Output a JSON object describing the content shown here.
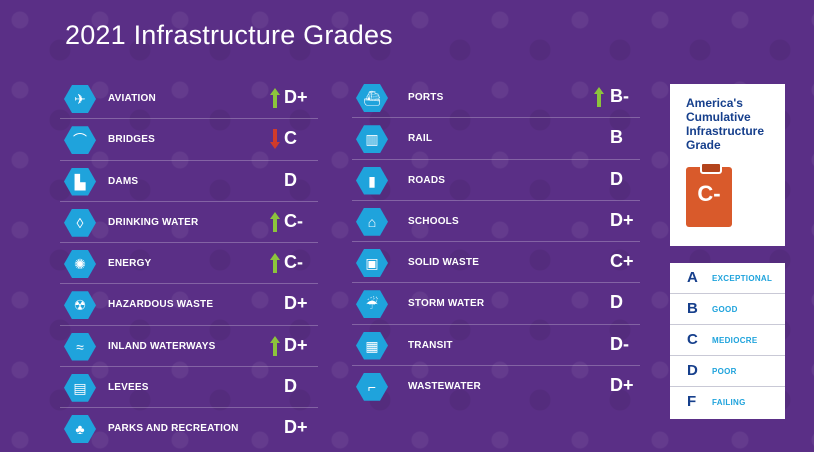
{
  "title": "2021 Infrastructure Grades",
  "categories_left": [
    {
      "name": "AVIATION",
      "grade": "D+",
      "trend": "up",
      "icon": "airplane-icon",
      "glyph": "✈"
    },
    {
      "name": "BRIDGES",
      "grade": "C",
      "trend": "down",
      "icon": "bridge-icon",
      "glyph": "⌒"
    },
    {
      "name": "DAMS",
      "grade": "D",
      "trend": "none",
      "icon": "dam-icon",
      "glyph": "▙"
    },
    {
      "name": "DRINKING WATER",
      "grade": "C-",
      "trend": "up",
      "icon": "water-glass-icon",
      "glyph": "◊"
    },
    {
      "name": "ENERGY",
      "grade": "C-",
      "trend": "up",
      "icon": "lightbulb-icon",
      "glyph": "✺"
    },
    {
      "name": "HAZARDOUS WASTE",
      "grade": "D+",
      "trend": "none",
      "icon": "hazard-barrel-icon",
      "glyph": "☢"
    },
    {
      "name": "INLAND WATERWAYS",
      "grade": "D+",
      "trend": "up",
      "icon": "waterway-icon",
      "glyph": "≈"
    },
    {
      "name": "LEVEES",
      "grade": "D",
      "trend": "none",
      "icon": "levee-icon",
      "glyph": "▤"
    },
    {
      "name": "PARKS AND RECREATION",
      "grade": "D+",
      "trend": "none",
      "icon": "tree-icon",
      "glyph": "♣"
    }
  ],
  "categories_right": [
    {
      "name": "PORTS",
      "grade": "B-",
      "trend": "up",
      "icon": "ship-icon",
      "glyph": "⛴"
    },
    {
      "name": "RAIL",
      "grade": "B",
      "trend": "none",
      "icon": "rail-icon",
      "glyph": "▥"
    },
    {
      "name": "ROADS",
      "grade": "D",
      "trend": "none",
      "icon": "road-icon",
      "glyph": "▮"
    },
    {
      "name": "SCHOOLS",
      "grade": "D+",
      "trend": "none",
      "icon": "school-icon",
      "glyph": "⌂"
    },
    {
      "name": "SOLID WASTE",
      "grade": "C+",
      "trend": "none",
      "icon": "trash-can-icon",
      "glyph": "▣"
    },
    {
      "name": "STORM WATER",
      "grade": "D",
      "trend": "none",
      "icon": "storm-drain-icon",
      "glyph": "☔"
    },
    {
      "name": "TRANSIT",
      "grade": "D-",
      "trend": "none",
      "icon": "bus-icon",
      "glyph": "▦"
    },
    {
      "name": "WASTEWATER",
      "grade": "D+",
      "trend": "none",
      "icon": "toilet-icon",
      "glyph": "⌐"
    }
  ],
  "cumulative": {
    "title": "America's Cumulative Infrastructure Grade",
    "grade": "C-"
  },
  "legend": [
    {
      "letter": "A",
      "desc": "EXCEPTIONAL"
    },
    {
      "letter": "B",
      "desc": "GOOD"
    },
    {
      "letter": "C",
      "desc": "MEDIOCRE"
    },
    {
      "letter": "D",
      "desc": "POOR"
    },
    {
      "letter": "F",
      "desc": "FAILING"
    }
  ],
  "colors": {
    "background": "#5a2f86",
    "icon_hex": "#1fa3dc",
    "arrow_up": "#8cc43c",
    "arrow_down": "#d13b2a",
    "card_title": "#163f8c",
    "card_clipboard": "#d95a2b"
  }
}
